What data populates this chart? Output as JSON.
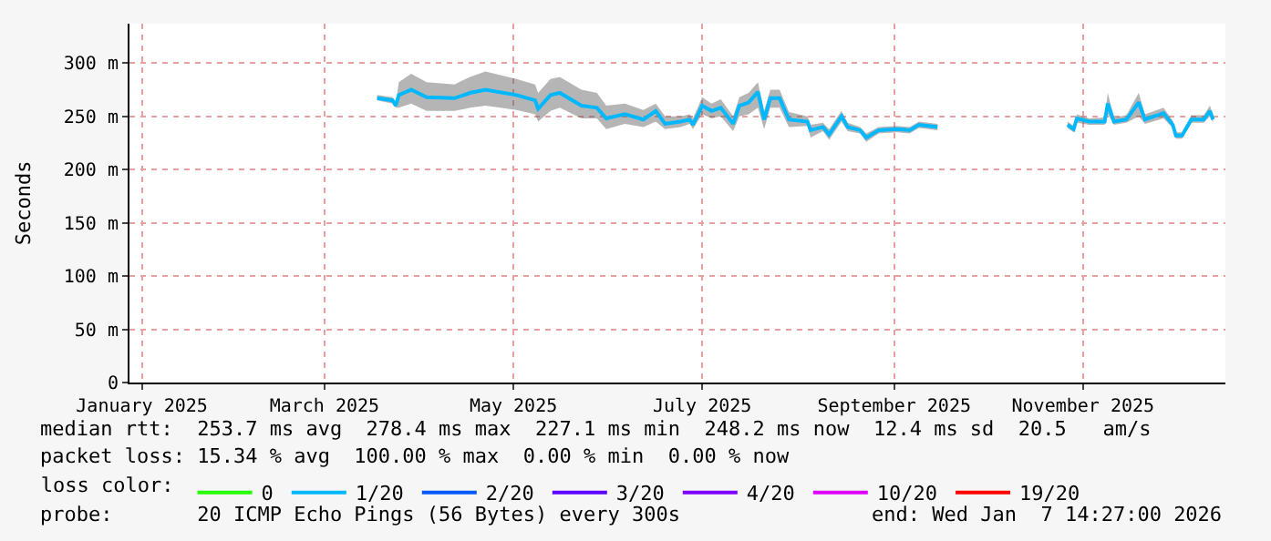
{
  "chart_data": {
    "type": "line",
    "ylabel": "Seconds",
    "xlim": [
      "2024-12-28",
      "2025-12-17"
    ],
    "xticks": [
      {
        "value": "2025-01-01",
        "label": "January 2025"
      },
      {
        "value": "2025-03-01",
        "label": "March 2025"
      },
      {
        "value": "2025-05-01",
        "label": "May 2025"
      },
      {
        "value": "2025-07-01",
        "label": "July 2025"
      },
      {
        "value": "2025-09-01",
        "label": "September 2025"
      },
      {
        "value": "2025-11-01",
        "label": "November 2025"
      }
    ],
    "ylim": [
      0,
      337
    ],
    "yticks": [
      0,
      {
        "value": 50,
        "label": "50 m"
      },
      {
        "value": 100,
        "label": "100 m"
      },
      {
        "value": 150,
        "label": "150 m"
      },
      {
        "value": 200,
        "label": "200 m"
      },
      {
        "value": 250,
        "label": "250 m"
      },
      {
        "value": 300,
        "label": "300 m"
      }
    ],
    "grid": true,
    "legend": "bottom",
    "legend_title": "loss color:",
    "line_style": "solid",
    "marker": "none",
    "x": [
      "2025-03-18",
      "2025-03-23",
      "2025-03-24",
      "2025-03-25",
      "2025-03-29",
      "2025-04-03",
      "2025-04-12",
      "2025-04-17",
      "2025-04-22",
      "2025-05-02",
      "2025-05-08",
      "2025-05-09",
      "2025-05-13",
      "2025-05-16",
      "2025-05-23",
      "2025-05-28",
      "2025-05-31",
      "2025-06-06",
      "2025-06-12",
      "2025-06-16",
      "2025-06-19",
      "2025-06-24",
      "2025-06-27",
      "2025-06-28",
      "2025-07-01",
      "2025-07-04",
      "2025-07-07",
      "2025-07-11",
      "2025-07-13",
      "2025-07-16",
      "2025-07-19",
      "2025-07-21",
      "2025-07-23",
      "2025-07-26",
      "2025-07-29",
      "2025-08-04",
      "2025-08-05",
      "2025-08-09",
      "2025-08-11",
      "2025-08-15",
      "2025-08-17",
      "2025-08-21",
      "2025-08-23",
      "2025-08-27",
      "2025-09-02",
      "2025-09-06",
      "2025-09-09",
      "2025-09-15",
      "2025-10-01",
      "2025-10-27",
      "2025-10-29",
      "2025-10-30",
      "2025-11-03",
      "2025-11-08",
      "2025-11-09",
      "2025-11-11",
      "2025-11-15",
      "2025-11-19",
      "2025-11-21",
      "2025-11-27",
      "2025-11-30",
      "2025-12-01",
      "2025-12-03",
      "2025-12-06",
      "2025-12-10",
      "2025-12-12",
      "2025-12-13"
    ],
    "series": [
      {
        "name": "0",
        "color": "#26ff00",
        "values": [
          null,
          null,
          null,
          null,
          null,
          null,
          null,
          null,
          null,
          null,
          null,
          null,
          null,
          null,
          null,
          null,
          null,
          null,
          null,
          null,
          null,
          null,
          null,
          null,
          null,
          null,
          null,
          null,
          null,
          null,
          null,
          null,
          null,
          null,
          null,
          null,
          null,
          null,
          null,
          null,
          null,
          null,
          null,
          null,
          null,
          null,
          null,
          null,
          null,
          null,
          null,
          null,
          null,
          null,
          null,
          null,
          null,
          null,
          null,
          null,
          null,
          null,
          null,
          null,
          null,
          null,
          null
        ]
      },
      {
        "name": "1/20",
        "color": "#00b8ff",
        "values": [
          267,
          265,
          260,
          270,
          275,
          268,
          267,
          272,
          275,
          270,
          265,
          257,
          270,
          272,
          260,
          258,
          248,
          252,
          247,
          255,
          243,
          245,
          247,
          242,
          260,
          255,
          258,
          243,
          260,
          263,
          273,
          247,
          267,
          267,
          247,
          245,
          237,
          240,
          233,
          250,
          240,
          237,
          230,
          237,
          238,
          237,
          242,
          240,
          null,
          242,
          238,
          248,
          245,
          245,
          262,
          245,
          247,
          263,
          247,
          253,
          242,
          232,
          232,
          247,
          247,
          255,
          247
        ],
        "lower": [
          265,
          262,
          258,
          258,
          262,
          255,
          255,
          258,
          260,
          256,
          252,
          245,
          255,
          258,
          248,
          248,
          238,
          243,
          240,
          245,
          238,
          240,
          243,
          238,
          252,
          248,
          250,
          236,
          250,
          252,
          258,
          238,
          258,
          258,
          240,
          241,
          230,
          236,
          228,
          245,
          236,
          234,
          226,
          234,
          235,
          234,
          239,
          237,
          null,
          239,
          235,
          244,
          242,
          242,
          252,
          242,
          244,
          250,
          243,
          248,
          239,
          229,
          229,
          244,
          244,
          250,
          244
        ],
        "upper": [
          270,
          268,
          262,
          282,
          290,
          282,
          280,
          287,
          292,
          285,
          280,
          272,
          285,
          287,
          275,
          272,
          260,
          262,
          256,
          262,
          250,
          250,
          252,
          248,
          268,
          262,
          266,
          250,
          268,
          272,
          282,
          255,
          275,
          275,
          254,
          250,
          242,
          244,
          238,
          255,
          244,
          240,
          234,
          240,
          241,
          240,
          245,
          243,
          null,
          245,
          241,
          252,
          248,
          249,
          272,
          249,
          251,
          272,
          252,
          258,
          246,
          235,
          235,
          251,
          251,
          260,
          251
        ]
      },
      {
        "name": "2/20",
        "color": "#0059ff",
        "values": [
          null,
          null,
          null,
          null,
          null,
          null,
          null,
          null,
          null,
          null,
          null,
          null,
          null,
          null,
          null,
          null,
          null,
          null,
          null,
          null,
          null,
          null,
          null,
          null,
          null,
          null,
          null,
          null,
          null,
          null,
          null,
          null,
          null,
          null,
          null,
          null,
          null,
          null,
          null,
          null,
          null,
          null,
          null,
          null,
          null,
          null,
          null,
          null,
          null,
          null,
          null,
          null,
          null,
          null,
          null,
          null,
          null,
          null,
          null,
          null,
          null,
          null,
          null,
          null,
          null,
          null,
          null
        ]
      },
      {
        "name": "3/20",
        "color": "#5e00ff",
        "values": [
          null,
          null,
          null,
          null,
          null,
          null,
          null,
          null,
          null,
          null,
          null,
          null,
          null,
          null,
          null,
          null,
          null,
          null,
          null,
          null,
          null,
          null,
          null,
          null,
          null,
          null,
          null,
          null,
          null,
          null,
          null,
          null,
          null,
          null,
          null,
          null,
          null,
          null,
          null,
          null,
          null,
          null,
          null,
          null,
          null,
          null,
          null,
          null,
          null,
          null,
          null,
          null,
          null,
          null,
          null,
          null,
          null,
          null,
          null,
          null,
          null,
          null,
          null,
          null,
          null,
          null,
          null
        ]
      },
      {
        "name": "4/20",
        "color": "#7e00ff",
        "values": [
          null,
          null,
          null,
          null,
          null,
          null,
          null,
          null,
          null,
          null,
          null,
          null,
          null,
          null,
          null,
          null,
          null,
          null,
          null,
          null,
          null,
          null,
          null,
          null,
          null,
          null,
          null,
          null,
          null,
          null,
          null,
          null,
          null,
          null,
          null,
          null,
          null,
          null,
          null,
          null,
          null,
          null,
          null,
          null,
          null,
          null,
          null,
          null,
          null,
          null,
          null,
          null,
          null,
          null,
          null,
          null,
          null,
          null,
          null,
          null,
          null,
          null,
          null,
          null,
          null,
          null,
          null
        ]
      },
      {
        "name": "10/20",
        "color": "#dd00ff",
        "values": [
          null,
          null,
          null,
          null,
          null,
          null,
          null,
          null,
          null,
          null,
          null,
          null,
          null,
          null,
          null,
          null,
          null,
          null,
          null,
          null,
          null,
          null,
          null,
          null,
          null,
          null,
          null,
          null,
          null,
          null,
          null,
          null,
          null,
          null,
          null,
          null,
          null,
          null,
          null,
          null,
          null,
          null,
          null,
          null,
          null,
          null,
          null,
          null,
          null,
          null,
          null,
          null,
          null,
          null,
          null,
          null,
          null,
          null,
          null,
          null,
          null,
          null,
          null,
          null,
          null,
          null,
          null
        ]
      },
      {
        "name": "19/20",
        "color": "#ff0000",
        "values": [
          null,
          null,
          null,
          null,
          null,
          null,
          null,
          null,
          null,
          null,
          null,
          null,
          null,
          null,
          null,
          null,
          null,
          null,
          null,
          null,
          null,
          null,
          null,
          null,
          null,
          null,
          null,
          null,
          null,
          null,
          null,
          null,
          null,
          null,
          null,
          null,
          null,
          null,
          null,
          null,
          null,
          null,
          null,
          null,
          null,
          null,
          null,
          null,
          null,
          null,
          null,
          null,
          null,
          null,
          null,
          null,
          null,
          null,
          null,
          null,
          null,
          null,
          null,
          null,
          null,
          null,
          null
        ]
      }
    ],
    "annotations": [
      "median rtt:  253.7 ms avg  278.4 ms max  227.1 ms min  248.2 ms now  12.4 ms sd  20.5   am/s",
      "packet loss: 15.34 % avg  100.00 % max  0.00 % min  0.00 % now",
      "probe:       20 ICMP Echo Pings (56 Bytes) every 300s",
      "end: Wed Jan  7 14:27:00 2026"
    ]
  }
}
